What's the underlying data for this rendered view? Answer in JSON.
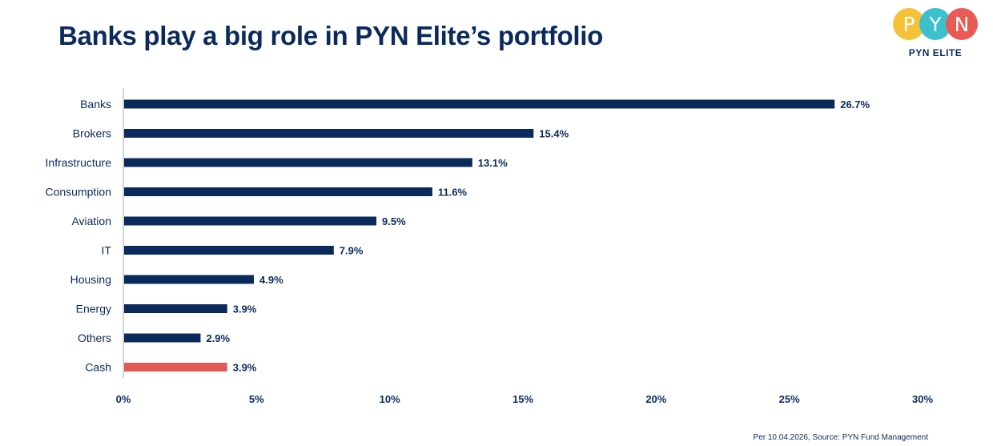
{
  "title": "Banks play a big role in PYN Elite’s portfolio",
  "logo": {
    "letters": [
      "P",
      "Y",
      "N"
    ],
    "subtitle": "PYN ELITE",
    "colors": [
      "#f6c338",
      "#3cc1cc",
      "#ea5a55"
    ]
  },
  "source": "Per 10.04.2026, Source: PYN Fund Management",
  "colors": {
    "primary": "#0b2a5c",
    "highlight": "#e15a57",
    "axis": "#b8b8b8"
  },
  "chart_data": {
    "type": "bar",
    "orientation": "horizontal",
    "categories": [
      "Banks",
      "Brokers",
      "Infrastructure",
      "Consumption",
      "Aviation",
      "IT",
      "Housing",
      "Energy",
      "Others",
      "Cash"
    ],
    "values": [
      26.7,
      15.4,
      13.1,
      11.6,
      9.5,
      7.9,
      4.9,
      3.9,
      2.9,
      3.9
    ],
    "value_labels": [
      "26.7%",
      "15.4%",
      "13.1%",
      "11.6%",
      "9.5%",
      "7.9%",
      "4.9%",
      "3.9%",
      "2.9%",
      "3.9%"
    ],
    "highlight_category": "Cash",
    "xlim": [
      0,
      30
    ],
    "xticks": [
      0,
      5,
      10,
      15,
      20,
      25,
      30
    ],
    "xtick_labels": [
      "0%",
      "5%",
      "10%",
      "15%",
      "20%",
      "25%",
      "30%"
    ],
    "xlabel": "",
    "ylabel": "",
    "grid": false,
    "legend": "none"
  }
}
